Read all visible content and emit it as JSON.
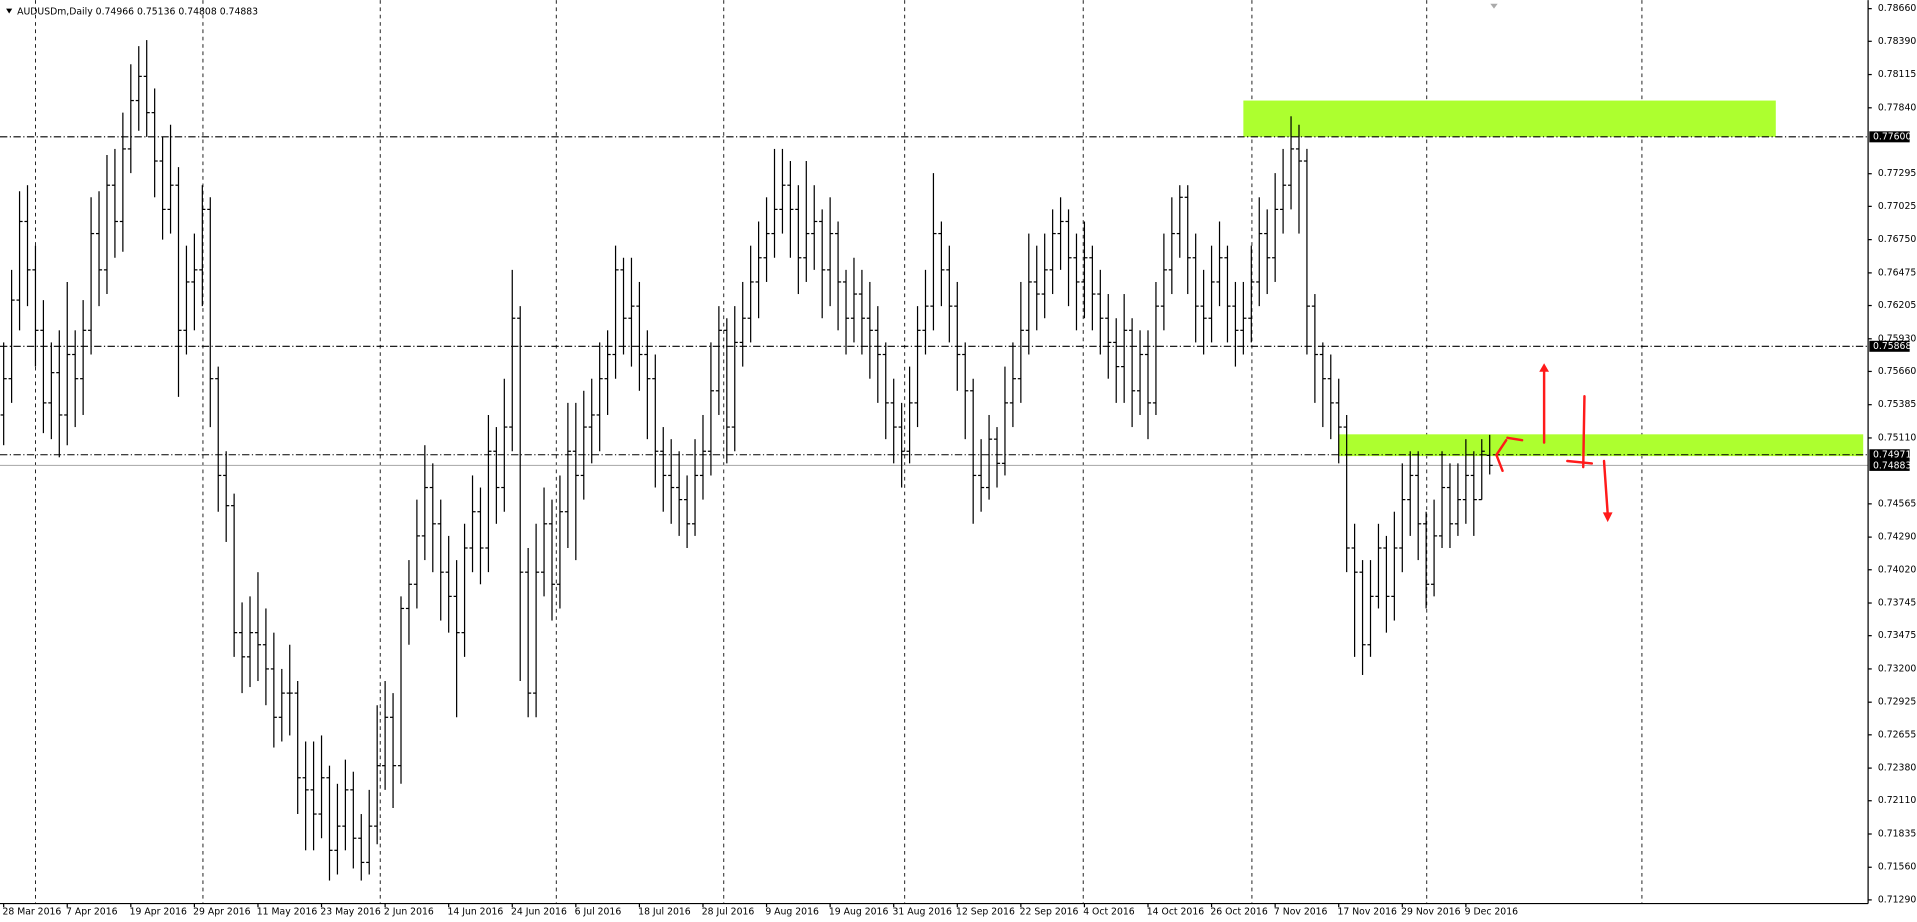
{
  "chart_data": {
    "type": "ohlc",
    "title": "AUDUSDm,Daily",
    "categories": [
      "28 Mar 2016",
      null,
      null,
      null,
      null,
      null,
      null,
      null,
      "7 Apr 2016",
      null,
      null,
      null,
      null,
      null,
      null,
      null,
      "19 Apr 2016",
      null,
      null,
      null,
      null,
      null,
      null,
      null,
      "29 Apr 2016",
      null,
      null,
      null,
      null,
      null,
      null,
      null,
      "11 May 2016",
      null,
      null,
      null,
      null,
      null,
      null,
      null,
      "23 May 2016",
      null,
      null,
      null,
      null,
      null,
      null,
      null,
      "2 Jun 2016",
      null,
      null,
      null,
      null,
      null,
      null,
      null,
      "14 Jun 2016",
      null,
      null,
      null,
      null,
      null,
      null,
      null,
      "24 Jun 2016",
      null,
      null,
      null,
      null,
      null,
      null,
      null,
      "6 Jul 2016",
      null,
      null,
      null,
      null,
      null,
      null,
      null,
      "18 Jul 2016",
      null,
      null,
      null,
      null,
      null,
      null,
      null,
      "28 Jul 2016",
      null,
      null,
      null,
      null,
      null,
      null,
      null,
      "9 Aug 2016",
      null,
      null,
      null,
      null,
      null,
      null,
      null,
      "19 Aug 2016",
      null,
      null,
      null,
      null,
      null,
      null,
      null,
      "31 Aug 2016",
      null,
      null,
      null,
      null,
      null,
      null,
      null,
      "12 Sep 2016",
      null,
      null,
      null,
      null,
      null,
      null,
      null,
      "22 Sep 2016",
      null,
      null,
      null,
      null,
      null,
      null,
      null,
      "4 Oct 2016",
      null,
      null,
      null,
      null,
      null,
      null,
      null,
      "14 Oct 2016",
      null,
      null,
      null,
      null,
      null,
      null,
      null,
      "26 Oct 2016",
      null,
      null,
      null,
      null,
      null,
      null,
      null,
      "7 Nov 2016",
      null,
      null,
      null,
      null,
      null,
      null,
      null,
      "17 Nov 2016",
      null,
      null,
      null,
      null,
      null,
      null,
      null,
      "29 Nov 2016",
      null,
      null,
      null,
      null,
      null,
      null,
      null,
      "9 Dec 2016",
      null,
      null,
      null
    ],
    "ohlc": [
      [
        0.753,
        0.759,
        0.7505,
        0.756
      ],
      [
        0.756,
        0.765,
        0.754,
        0.7625
      ],
      [
        0.7625,
        0.7715,
        0.76,
        0.769
      ],
      [
        0.769,
        0.772,
        0.762,
        0.765
      ],
      [
        0.765,
        0.767,
        0.757,
        0.76
      ],
      [
        0.76,
        0.7625,
        0.7515,
        0.754
      ],
      [
        0.754,
        0.759,
        0.751,
        0.7565
      ],
      [
        0.7565,
        0.76,
        0.7495,
        0.753
      ],
      [
        0.753,
        0.764,
        0.7505,
        0.758
      ],
      [
        0.758,
        0.76,
        0.752,
        0.756
      ],
      [
        0.756,
        0.7625,
        0.753,
        0.76
      ],
      [
        0.76,
        0.771,
        0.758,
        0.768
      ],
      [
        0.768,
        0.7715,
        0.762,
        0.765
      ],
      [
        0.765,
        0.7745,
        0.763,
        0.772
      ],
      [
        0.772,
        0.775,
        0.766,
        0.769
      ],
      [
        0.769,
        0.778,
        0.7665,
        0.775
      ],
      [
        0.775,
        0.782,
        0.773,
        0.779
      ],
      [
        0.779,
        0.7835,
        0.7765,
        0.781
      ],
      [
        0.781,
        0.784,
        0.776,
        0.778
      ],
      [
        0.778,
        0.78,
        0.771,
        0.774
      ],
      [
        0.774,
        0.776,
        0.7675,
        0.77
      ],
      [
        0.77,
        0.777,
        0.768,
        0.772
      ],
      [
        0.772,
        0.7735,
        0.7545,
        0.76
      ],
      [
        0.76,
        0.767,
        0.758,
        0.764
      ],
      [
        0.764,
        0.768,
        0.76,
        0.765
      ],
      [
        0.765,
        0.772,
        0.762,
        0.77
      ],
      [
        0.77,
        0.771,
        0.752,
        0.756
      ],
      [
        0.756,
        0.757,
        0.745,
        0.748
      ],
      [
        0.748,
        0.75,
        0.7425,
        0.7455
      ],
      [
        0.7455,
        0.7465,
        0.733,
        0.735
      ],
      [
        0.735,
        0.7375,
        0.73,
        0.733
      ],
      [
        0.733,
        0.738,
        0.7305,
        0.735
      ],
      [
        0.735,
        0.74,
        0.731,
        0.734
      ],
      [
        0.734,
        0.737,
        0.729,
        0.732
      ],
      [
        0.732,
        0.735,
        0.7255,
        0.728
      ],
      [
        0.728,
        0.732,
        0.726,
        0.73
      ],
      [
        0.73,
        0.734,
        0.7265,
        0.73
      ],
      [
        0.73,
        0.731,
        0.72,
        0.723
      ],
      [
        0.723,
        0.726,
        0.717,
        0.722
      ],
      [
        0.722,
        0.726,
        0.717,
        0.72
      ],
      [
        0.72,
        0.7265,
        0.718,
        0.723
      ],
      [
        0.723,
        0.724,
        0.7145,
        0.717
      ],
      [
        0.717,
        0.7225,
        0.715,
        0.719
      ],
      [
        0.719,
        0.7245,
        0.717,
        0.722
      ],
      [
        0.722,
        0.7235,
        0.7155,
        0.718
      ],
      [
        0.718,
        0.72,
        0.7145,
        0.716
      ],
      [
        0.716,
        0.722,
        0.715,
        0.719
      ],
      [
        0.719,
        0.729,
        0.7175,
        0.724
      ],
      [
        0.724,
        0.731,
        0.722,
        0.728
      ],
      [
        0.728,
        0.73,
        0.7205,
        0.724
      ],
      [
        0.724,
        0.738,
        0.7225,
        0.737
      ],
      [
        0.737,
        0.741,
        0.734,
        0.739
      ],
      [
        0.739,
        0.746,
        0.737,
        0.743
      ],
      [
        0.743,
        0.7505,
        0.741,
        0.747
      ],
      [
        0.747,
        0.749,
        0.74,
        0.744
      ],
      [
        0.744,
        0.746,
        0.736,
        0.74
      ],
      [
        0.74,
        0.743,
        0.735,
        0.738
      ],
      [
        0.738,
        0.741,
        0.728,
        0.735
      ],
      [
        0.735,
        0.744,
        0.733,
        0.742
      ],
      [
        0.742,
        0.748,
        0.74,
        0.745
      ],
      [
        0.745,
        0.747,
        0.739,
        0.742
      ],
      [
        0.742,
        0.753,
        0.74,
        0.75
      ],
      [
        0.75,
        0.752,
        0.744,
        0.747
      ],
      [
        0.747,
        0.756,
        0.745,
        0.752
      ],
      [
        0.752,
        0.765,
        0.75,
        0.761
      ],
      [
        0.761,
        0.762,
        0.731,
        0.74
      ],
      [
        0.74,
        0.742,
        0.728,
        0.73
      ],
      [
        0.73,
        0.744,
        0.728,
        0.74
      ],
      [
        0.74,
        0.747,
        0.738,
        0.744
      ],
      [
        0.744,
        0.746,
        0.736,
        0.739
      ],
      [
        0.739,
        0.748,
        0.737,
        0.745
      ],
      [
        0.745,
        0.754,
        0.742,
        0.75
      ],
      [
        0.75,
        0.754,
        0.741,
        0.748
      ],
      [
        0.748,
        0.755,
        0.746,
        0.752
      ],
      [
        0.752,
        0.756,
        0.749,
        0.753
      ],
      [
        0.753,
        0.759,
        0.75,
        0.756
      ],
      [
        0.756,
        0.76,
        0.753,
        0.758
      ],
      [
        0.758,
        0.767,
        0.756,
        0.765
      ],
      [
        0.765,
        0.766,
        0.758,
        0.761
      ],
      [
        0.761,
        0.766,
        0.757,
        0.762
      ],
      [
        0.762,
        0.764,
        0.755,
        0.758
      ],
      [
        0.758,
        0.76,
        0.751,
        0.756
      ],
      [
        0.756,
        0.758,
        0.747,
        0.75
      ],
      [
        0.75,
        0.752,
        0.745,
        0.748
      ],
      [
        0.748,
        0.751,
        0.744,
        0.747
      ],
      [
        0.747,
        0.75,
        0.743,
        0.746
      ],
      [
        0.746,
        0.748,
        0.742,
        0.744
      ],
      [
        0.744,
        0.751,
        0.743,
        0.748
      ],
      [
        0.748,
        0.753,
        0.746,
        0.75
      ],
      [
        0.75,
        0.759,
        0.748,
        0.755
      ],
      [
        0.755,
        0.762,
        0.753,
        0.76
      ],
      [
        0.76,
        0.761,
        0.749,
        0.752
      ],
      [
        0.752,
        0.762,
        0.75,
        0.759
      ],
      [
        0.759,
        0.764,
        0.757,
        0.761
      ],
      [
        0.761,
        0.767,
        0.759,
        0.764
      ],
      [
        0.764,
        0.769,
        0.761,
        0.766
      ],
      [
        0.766,
        0.771,
        0.764,
        0.768
      ],
      [
        0.768,
        0.775,
        0.766,
        0.77
      ],
      [
        0.77,
        0.775,
        0.768,
        0.772
      ],
      [
        0.772,
        0.774,
        0.766,
        0.77
      ],
      [
        0.77,
        0.772,
        0.763,
        0.766
      ],
      [
        0.766,
        0.774,
        0.764,
        0.768
      ],
      [
        0.768,
        0.772,
        0.765,
        0.769
      ],
      [
        0.769,
        0.77,
        0.761,
        0.765
      ],
      [
        0.765,
        0.771,
        0.762,
        0.768
      ],
      [
        0.768,
        0.769,
        0.76,
        0.764
      ],
      [
        0.764,
        0.765,
        0.758,
        0.761
      ],
      [
        0.761,
        0.766,
        0.759,
        0.763
      ],
      [
        0.763,
        0.765,
        0.758,
        0.761
      ],
      [
        0.761,
        0.764,
        0.756,
        0.76
      ],
      [
        0.76,
        0.762,
        0.754,
        0.758
      ],
      [
        0.758,
        0.759,
        0.751,
        0.754
      ],
      [
        0.754,
        0.756,
        0.749,
        0.752
      ],
      [
        0.752,
        0.754,
        0.747,
        0.75
      ],
      [
        0.75,
        0.757,
        0.749,
        0.754
      ],
      [
        0.754,
        0.762,
        0.752,
        0.76
      ],
      [
        0.76,
        0.765,
        0.758,
        0.762
      ],
      [
        0.762,
        0.773,
        0.76,
        0.768
      ],
      [
        0.768,
        0.769,
        0.762,
        0.765
      ],
      [
        0.765,
        0.767,
        0.759,
        0.762
      ],
      [
        0.762,
        0.764,
        0.755,
        0.758
      ],
      [
        0.758,
        0.759,
        0.751,
        0.755
      ],
      [
        0.755,
        0.756,
        0.744,
        0.748
      ],
      [
        0.748,
        0.751,
        0.745,
        0.747
      ],
      [
        0.747,
        0.753,
        0.746,
        0.751
      ],
      [
        0.751,
        0.752,
        0.747,
        0.749
      ],
      [
        0.749,
        0.757,
        0.748,
        0.754
      ],
      [
        0.754,
        0.759,
        0.752,
        0.756
      ],
      [
        0.756,
        0.764,
        0.754,
        0.76
      ],
      [
        0.76,
        0.768,
        0.758,
        0.764
      ],
      [
        0.764,
        0.767,
        0.76,
        0.763
      ],
      [
        0.763,
        0.768,
        0.761,
        0.765
      ],
      [
        0.765,
        0.77,
        0.763,
        0.768
      ],
      [
        0.768,
        0.771,
        0.765,
        0.769
      ],
      [
        0.769,
        0.77,
        0.762,
        0.766
      ],
      [
        0.766,
        0.768,
        0.76,
        0.764
      ],
      [
        0.764,
        0.769,
        0.761,
        0.766
      ],
      [
        0.766,
        0.767,
        0.76,
        0.763
      ],
      [
        0.763,
        0.765,
        0.758,
        0.761
      ],
      [
        0.761,
        0.763,
        0.756,
        0.759
      ],
      [
        0.759,
        0.761,
        0.754,
        0.757
      ],
      [
        0.757,
        0.763,
        0.754,
        0.76
      ],
      [
        0.76,
        0.761,
        0.752,
        0.755
      ],
      [
        0.755,
        0.76,
        0.753,
        0.758
      ],
      [
        0.758,
        0.76,
        0.751,
        0.754
      ],
      [
        0.754,
        0.764,
        0.753,
        0.762
      ],
      [
        0.762,
        0.768,
        0.76,
        0.765
      ],
      [
        0.765,
        0.771,
        0.763,
        0.768
      ],
      [
        0.768,
        0.772,
        0.766,
        0.771
      ],
      [
        0.771,
        0.772,
        0.763,
        0.766
      ],
      [
        0.766,
        0.768,
        0.759,
        0.762
      ],
      [
        0.762,
        0.765,
        0.758,
        0.761
      ],
      [
        0.761,
        0.767,
        0.759,
        0.764
      ],
      [
        0.764,
        0.769,
        0.762,
        0.766
      ],
      [
        0.766,
        0.767,
        0.759,
        0.762
      ],
      [
        0.762,
        0.764,
        0.757,
        0.76
      ],
      [
        0.76,
        0.764,
        0.758,
        0.761
      ],
      [
        0.761,
        0.767,
        0.759,
        0.764
      ],
      [
        0.764,
        0.771,
        0.762,
        0.768
      ],
      [
        0.768,
        0.77,
        0.763,
        0.766
      ],
      [
        0.766,
        0.773,
        0.764,
        0.77
      ],
      [
        0.77,
        0.775,
        0.768,
        0.772
      ],
      [
        0.772,
        0.7777,
        0.77,
        0.775
      ],
      [
        0.775,
        0.777,
        0.768,
        0.774
      ],
      [
        0.774,
        0.775,
        0.758,
        0.762
      ],
      [
        0.762,
        0.763,
        0.754,
        0.758
      ],
      [
        0.758,
        0.759,
        0.752,
        0.756
      ],
      [
        0.756,
        0.758,
        0.751,
        0.754
      ],
      [
        0.754,
        0.756,
        0.749,
        0.752
      ],
      [
        0.752,
        0.753,
        0.74,
        0.742
      ],
      [
        0.742,
        0.744,
        0.733,
        0.74
      ],
      [
        0.74,
        0.741,
        0.7315,
        0.734
      ],
      [
        0.734,
        0.741,
        0.733,
        0.738
      ],
      [
        0.738,
        0.744,
        0.737,
        0.742
      ],
      [
        0.742,
        0.743,
        0.735,
        0.738
      ],
      [
        0.738,
        0.745,
        0.736,
        0.742
      ],
      [
        0.742,
        0.749,
        0.74,
        0.746
      ],
      [
        0.746,
        0.75,
        0.743,
        0.748
      ],
      [
        0.748,
        0.75,
        0.741,
        0.744
      ],
      [
        0.744,
        0.745,
        0.737,
        0.739
      ],
      [
        0.739,
        0.746,
        0.738,
        0.743
      ],
      [
        0.743,
        0.75,
        0.742,
        0.747
      ],
      [
        0.747,
        0.749,
        0.742,
        0.744
      ],
      [
        0.744,
        0.749,
        0.743,
        0.746
      ],
      [
        0.746,
        0.751,
        0.744,
        0.748
      ],
      [
        0.748,
        0.75,
        0.743,
        0.746
      ],
      [
        0.746,
        0.751,
        0.746,
        0.75
      ],
      [
        0.74966,
        0.75136,
        0.74808,
        0.74883
      ]
    ],
    "color": "#000000",
    "ylim": [
      0.7129,
      0.7866
    ],
    "yticks": [
      {
        "value": 0.7866,
        "label": "0.78660"
      },
      {
        "value": 0.7839,
        "label": "0.78390"
      },
      0.78115,
      {
        "value": 0.7784,
        "label": "0.77840"
      },
      0.77295,
      0.77025,
      {
        "value": 0.7675,
        "label": "0.76750"
      },
      0.76475,
      0.76205,
      {
        "value": 0.7593,
        "label": "0.75930"
      },
      {
        "value": 0.7566,
        "label": "0.75660"
      },
      0.75385,
      {
        "value": 0.7511,
        "label": "0.75110"
      },
      0.74565,
      {
        "value": 0.7429,
        "label": "0.74290"
      },
      {
        "value": 0.7402,
        "label": "0.74020"
      },
      0.73745,
      0.73475,
      {
        "value": 0.732,
        "label": "0.73200"
      },
      0.72925,
      0.72655,
      {
        "value": 0.7238,
        "label": "0.72380"
      },
      {
        "value": 0.7211,
        "label": "0.72110"
      },
      0.71835,
      {
        "value": 0.7156,
        "label": "0.71560"
      },
      {
        "value": 0.7129,
        "label": "0.71290"
      }
    ],
    "levels": [
      {
        "value": 0.776,
        "label": "0.77600"
      },
      0.75868,
      0.74971
    ],
    "zones": [
      {
        "ylim": [
          0.776,
          0.779
        ],
        "x": [
          156,
          223
        ],
        "color": "#adff2f"
      },
      {
        "ylim": [
          0.7496,
          0.7514
        ],
        "x": [
          168,
          234
        ],
        "color": "#adff2f"
      }
    ],
    "grid": true
  }
}
